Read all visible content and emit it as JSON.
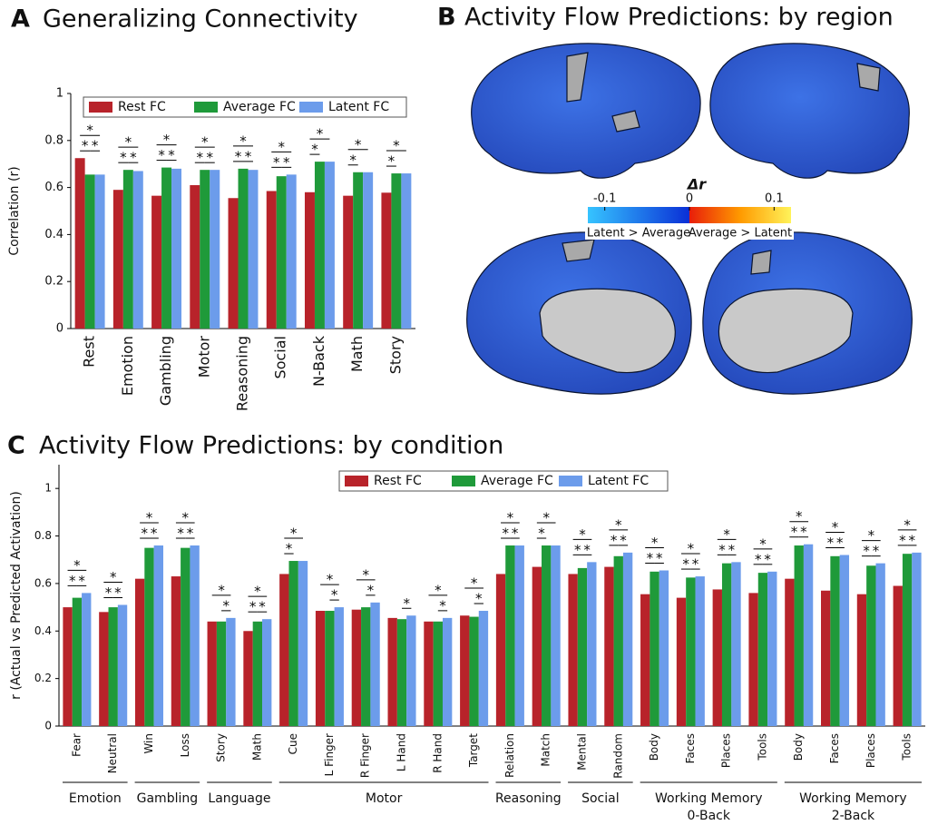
{
  "chart_data": [
    {
      "type": "bar",
      "panel": "A",
      "title": "Generalizing Connectivity",
      "y_label": "Correlation (r)",
      "categories": [
        "Rest",
        "Emotion",
        "Gambling",
        "Motor",
        "Reasoning",
        "Social",
        "N-Back",
        "Math",
        "Story"
      ],
      "series": [
        {
          "name": "Rest FC",
          "color": "#b8232a",
          "values": [
            0.725,
            0.59,
            0.565,
            0.61,
            0.555,
            0.585,
            0.58,
            0.565,
            0.578
          ]
        },
        {
          "name": "Average FC",
          "color": "#1f9a3a",
          "values": [
            0.655,
            0.675,
            0.685,
            0.675,
            0.68,
            0.648,
            0.71,
            0.665,
            0.66
          ]
        },
        {
          "name": "Latent FC",
          "color": "#6c9ceb",
          "values": [
            0.655,
            0.67,
            0.68,
            0.675,
            0.675,
            0.655,
            0.71,
            0.665,
            0.66
          ]
        }
      ],
      "ylim": [
        0,
        1
      ],
      "yticks": [
        0,
        0.2,
        0.4,
        0.6,
        0.8,
        1
      ],
      "significance_label": "*",
      "significance": [
        [
          [
            0,
            2
          ],
          [
            0,
            1
          ],
          [
            1,
            2
          ]
        ],
        [
          [
            0,
            2
          ],
          [
            0,
            1
          ],
          [
            1,
            2
          ]
        ],
        [
          [
            0,
            2
          ],
          [
            0,
            1
          ],
          [
            1,
            2
          ]
        ],
        [
          [
            0,
            2
          ],
          [
            0,
            1
          ],
          [
            1,
            2
          ]
        ],
        [
          [
            0,
            2
          ],
          [
            0,
            1
          ],
          [
            1,
            2
          ]
        ],
        [
          [
            0,
            2
          ],
          [
            0,
            1
          ],
          [
            1,
            2
          ]
        ],
        [
          [
            0,
            2
          ],
          [
            0,
            1
          ]
        ],
        [
          [
            0,
            2
          ],
          [
            0,
            1
          ]
        ],
        [
          [
            0,
            2
          ],
          [
            0,
            1
          ]
        ]
      ]
    },
    {
      "type": "bar",
      "panel": "C",
      "title": "Activity Flow Predictions: by condition",
      "y_label": "r (Actual vs Predicted Activation)",
      "categories": [
        "Fear",
        "Neutral",
        "Win",
        "Loss",
        "Story",
        "Math",
        "Cue",
        "L Finger",
        "R Finger",
        "L Hand",
        "R Hand",
        "Target",
        "Relation",
        "Match",
        "Mental",
        "Random",
        "Body",
        "Faces",
        "Places",
        "Tools",
        "Body",
        "Faces",
        "Places",
        "Tools"
      ],
      "groups": [
        {
          "name": "Emotion",
          "count": 2
        },
        {
          "name": "Gambling",
          "count": 2
        },
        {
          "name": "Language",
          "count": 2
        },
        {
          "name": "Motor",
          "count": 6
        },
        {
          "name": "Reasoning",
          "count": 2
        },
        {
          "name": "Social",
          "count": 2
        },
        {
          "name": "Working Memory",
          "sub": "0-Back",
          "count": 4
        },
        {
          "name": "Working Memory",
          "sub": "2-Back",
          "count": 4
        }
      ],
      "series": [
        {
          "name": "Rest FC",
          "color": "#b8232a",
          "values": [
            0.5,
            0.48,
            0.62,
            0.63,
            0.44,
            0.4,
            0.64,
            0.485,
            0.49,
            0.455,
            0.44,
            0.465,
            0.64,
            0.67,
            0.64,
            0.67,
            0.555,
            0.54,
            0.575,
            0.56,
            0.62,
            0.57,
            0.555,
            0.59
          ]
        },
        {
          "name": "Average FC",
          "color": "#1f9a3a",
          "values": [
            0.54,
            0.5,
            0.75,
            0.75,
            0.44,
            0.44,
            0.695,
            0.485,
            0.5,
            0.45,
            0.44,
            0.46,
            0.76,
            0.76,
            0.665,
            0.715,
            0.65,
            0.625,
            0.685,
            0.645,
            0.76,
            0.715,
            0.675,
            0.725
          ]
        },
        {
          "name": "Latent FC",
          "color": "#6c9ceb",
          "values": [
            0.56,
            0.51,
            0.76,
            0.76,
            0.455,
            0.45,
            0.695,
            0.5,
            0.52,
            0.465,
            0.455,
            0.485,
            0.76,
            0.76,
            0.69,
            0.73,
            0.655,
            0.63,
            0.69,
            0.65,
            0.765,
            0.72,
            0.685,
            0.73
          ]
        }
      ],
      "ylim": [
        0,
        1.1
      ],
      "yticks": [
        0,
        0.2,
        0.4,
        0.6,
        0.8,
        1
      ],
      "significance_label": "*",
      "significance": [
        [
          [
            0,
            2
          ],
          [
            0,
            1
          ],
          [
            1,
            2
          ]
        ],
        [
          [
            0,
            2
          ],
          [
            0,
            1
          ],
          [
            1,
            2
          ]
        ],
        [
          [
            0,
            2
          ],
          [
            0,
            1
          ],
          [
            1,
            2
          ]
        ],
        [
          [
            0,
            2
          ],
          [
            0,
            1
          ],
          [
            1,
            2
          ]
        ],
        [
          [
            0,
            2
          ],
          [
            1,
            2
          ]
        ],
        [
          [
            0,
            2
          ],
          [
            0,
            1
          ],
          [
            1,
            2
          ]
        ],
        [
          [
            0,
            2
          ],
          [
            0,
            1
          ]
        ],
        [
          [
            0,
            2
          ],
          [
            1,
            2
          ]
        ],
        [
          [
            0,
            2
          ],
          [
            1,
            2
          ]
        ],
        [
          [
            1,
            2
          ]
        ],
        [
          [
            0,
            2
          ],
          [
            1,
            2
          ]
        ],
        [
          [
            0,
            2
          ],
          [
            1,
            2
          ]
        ],
        [
          [
            0,
            2
          ],
          [
            0,
            1
          ],
          [
            1,
            2
          ]
        ],
        [
          [
            0,
            2
          ],
          [
            0,
            1
          ]
        ],
        [
          [
            0,
            2
          ],
          [
            0,
            1
          ],
          [
            1,
            2
          ]
        ],
        [
          [
            0,
            2
          ],
          [
            0,
            1
          ],
          [
            1,
            2
          ]
        ],
        [
          [
            0,
            2
          ],
          [
            0,
            1
          ],
          [
            1,
            2
          ]
        ],
        [
          [
            0,
            2
          ],
          [
            0,
            1
          ],
          [
            1,
            2
          ]
        ],
        [
          [
            0,
            2
          ],
          [
            0,
            1
          ],
          [
            1,
            2
          ]
        ],
        [
          [
            0,
            2
          ],
          [
            0,
            1
          ],
          [
            1,
            2
          ]
        ],
        [
          [
            0,
            2
          ],
          [
            0,
            1
          ],
          [
            1,
            2
          ]
        ],
        [
          [
            0,
            2
          ],
          [
            0,
            1
          ],
          [
            1,
            2
          ]
        ],
        [
          [
            0,
            2
          ],
          [
            0,
            1
          ],
          [
            1,
            2
          ]
        ],
        [
          [
            0,
            2
          ],
          [
            0,
            1
          ],
          [
            1,
            2
          ]
        ]
      ]
    }
  ],
  "panel_b": {
    "panel": "B",
    "title": "Activity Flow Predictions: by region",
    "colorbar": {
      "title": "Δr",
      "lim": [
        -0.12,
        0.12
      ],
      "ticks": [
        -0.1,
        0,
        0.1
      ],
      "left_label": "Latent > Average",
      "right_label": "Average > Latent"
    }
  }
}
